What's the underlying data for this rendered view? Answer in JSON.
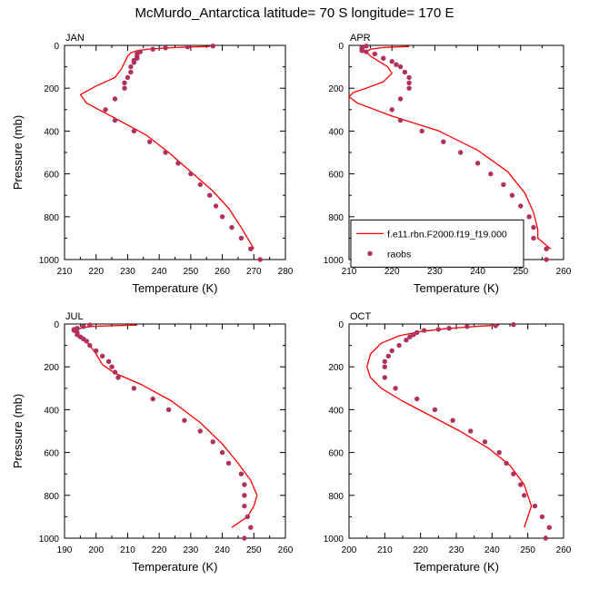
{
  "title": "McMurdo_Antarctica  latitude= 70 S longitude= 170 E",
  "chart_data": [
    {
      "type": "line",
      "panel_label": "JAN",
      "xlabel": "Temperature (K)",
      "ylabel": "Pressure (mb)",
      "xlim": [
        210,
        280
      ],
      "ylim": [
        1000,
        0
      ],
      "y_inverted": true,
      "xticks": [
        210,
        220,
        230,
        240,
        250,
        260,
        270,
        280
      ],
      "yticks": [
        0,
        200,
        400,
        600,
        800,
        1000
      ],
      "legend": null,
      "series": [
        {
          "name": "f.e11.rbn.F2000.f19_f19.000",
          "kind": "line",
          "color": "#ff0000",
          "points": [
            [
              256,
              5
            ],
            [
              245,
              10
            ],
            [
              237,
              17
            ],
            [
              233,
              25
            ],
            [
              231,
              35
            ],
            [
              230,
              50
            ],
            [
              229,
              80
            ],
            [
              228,
              110
            ],
            [
              226,
              150
            ],
            [
              220,
              190
            ],
            [
              215,
              230
            ],
            [
              217,
              270
            ],
            [
              226,
              340
            ],
            [
              236,
              420
            ],
            [
              243,
              500
            ],
            [
              250,
              590
            ],
            [
              257,
              680
            ],
            [
              262,
              760
            ],
            [
              266,
              850
            ],
            [
              270,
              950
            ]
          ]
        },
        {
          "name": "raobs",
          "kind": "markers",
          "color": "#b03060",
          "points": [
            [
              257,
              3
            ],
            [
              249,
              7
            ],
            [
              242,
              12
            ],
            [
              238,
              18
            ],
            [
              234,
              30
            ],
            [
              233,
              40
            ],
            [
              233,
              50
            ],
            [
              233,
              60
            ],
            [
              232,
              70
            ],
            [
              232,
              80
            ],
            [
              231,
              100
            ],
            [
              231,
              125
            ],
            [
              230,
              150
            ],
            [
              229,
              175
            ],
            [
              229,
              200
            ],
            [
              226,
              250
            ],
            [
              223,
              300
            ],
            [
              226,
              350
            ],
            [
              232,
              400
            ],
            [
              237,
              450
            ],
            [
              242,
              500
            ],
            [
              246,
              550
            ],
            [
              250,
              600
            ],
            [
              253,
              650
            ],
            [
              256,
              700
            ],
            [
              258,
              750
            ],
            [
              260,
              800
            ],
            [
              263,
              850
            ],
            [
              266,
              900
            ],
            [
              269,
              950
            ],
            [
              272,
              1000
            ]
          ]
        }
      ]
    },
    {
      "type": "line",
      "panel_label": "APR",
      "xlabel": "Temperature (K)",
      "ylabel": "",
      "xlim": [
        210,
        260
      ],
      "ylim": [
        1000,
        0
      ],
      "y_inverted": true,
      "xticks": [
        210,
        220,
        230,
        240,
        250,
        260
      ],
      "yticks": [
        0,
        200,
        400,
        600,
        800,
        1000
      ],
      "legend": {
        "position": "bottom-left",
        "entries": [
          "f.e11.rbn.F2000.f19_f19.000",
          "raobs"
        ]
      },
      "series": [
        {
          "name": "f.e11.rbn.F2000.f19_f19.000",
          "kind": "line",
          "color": "#ff0000",
          "points": [
            [
              224,
              5
            ],
            [
              218,
              10
            ],
            [
              215,
              18
            ],
            [
              214,
              30
            ],
            [
              215,
              50
            ],
            [
              217,
              75
            ],
            [
              219,
              100
            ],
            [
              220,
              130
            ],
            [
              218,
              170
            ],
            [
              214,
              200
            ],
            [
              211,
              220
            ],
            [
              210,
              240
            ],
            [
              212,
              270
            ],
            [
              220,
              330
            ],
            [
              231,
              400
            ],
            [
              240,
              490
            ],
            [
              247,
              590
            ],
            [
              251,
              690
            ],
            [
              253,
              780
            ],
            [
              254,
              860
            ],
            [
              254,
              900
            ],
            [
              257,
              950
            ]
          ]
        },
        {
          "name": "raobs",
          "kind": "markers",
          "color": "#b03060",
          "points": [
            [
              214,
              3
            ],
            [
              213,
              10
            ],
            [
              213,
              15
            ],
            [
              213,
              20
            ],
            [
              213,
              25
            ],
            [
              214,
              30
            ],
            [
              216,
              40
            ],
            [
              218,
              60
            ],
            [
              220,
              75
            ],
            [
              221,
              90
            ],
            [
              222,
              100
            ],
            [
              223,
              125
            ],
            [
              224,
              150
            ],
            [
              224,
              175
            ],
            [
              224,
              200
            ],
            [
              222,
              250
            ],
            [
              220,
              300
            ],
            [
              222,
              350
            ],
            [
              227,
              400
            ],
            [
              232,
              450
            ],
            [
              236,
              500
            ],
            [
              240,
              550
            ],
            [
              243,
              600
            ],
            [
              246,
              650
            ],
            [
              248,
              700
            ],
            [
              250,
              750
            ],
            [
              252,
              800
            ],
            [
              253,
              850
            ],
            [
              253,
              900
            ],
            [
              256,
              950
            ],
            [
              256,
              1000
            ]
          ]
        }
      ]
    },
    {
      "type": "line",
      "panel_label": "JUL",
      "xlabel": "Temperature (K)",
      "ylabel": "Pressure (mb)",
      "xlim": [
        190,
        260
      ],
      "ylim": [
        1000,
        0
      ],
      "y_inverted": true,
      "xticks": [
        190,
        200,
        210,
        220,
        230,
        240,
        250,
        260
      ],
      "yticks": [
        0,
        200,
        400,
        600,
        800,
        1000
      ],
      "legend": null,
      "series": [
        {
          "name": "f.e11.rbn.F2000.f19_f19.000",
          "kind": "line",
          "color": "#ff0000",
          "points": [
            [
              213,
              5
            ],
            [
              205,
              8
            ],
            [
              198,
              12
            ],
            [
              195,
              20
            ],
            [
              194,
              30
            ],
            [
              194,
              50
            ],
            [
              196,
              70
            ],
            [
              198,
              100
            ],
            [
              200,
              140
            ],
            [
              202,
              190
            ],
            [
              206,
              230
            ],
            [
              214,
              280
            ],
            [
              224,
              360
            ],
            [
              233,
              460
            ],
            [
              240,
              560
            ],
            [
              245,
              650
            ],
            [
              249,
              730
            ],
            [
              251,
              800
            ],
            [
              250,
              850
            ],
            [
              248,
              900
            ],
            [
              243,
              950
            ]
          ]
        },
        {
          "name": "raobs",
          "kind": "markers",
          "color": "#b03060",
          "points": [
            [
              198,
              5
            ],
            [
              196,
              12
            ],
            [
              194,
              20
            ],
            [
              193,
              25
            ],
            [
              193,
              30
            ],
            [
              194,
              40
            ],
            [
              194,
              50
            ],
            [
              195,
              60
            ],
            [
              196,
              70
            ],
            [
              197,
              80
            ],
            [
              198,
              100
            ],
            [
              200,
              125
            ],
            [
              202,
              150
            ],
            [
              204,
              175
            ],
            [
              205,
              200
            ],
            [
              206,
              225
            ],
            [
              207,
              250
            ],
            [
              212,
              300
            ],
            [
              218,
              350
            ],
            [
              223,
              400
            ],
            [
              228,
              450
            ],
            [
              233,
              500
            ],
            [
              237,
              550
            ],
            [
              240,
              600
            ],
            [
              242,
              650
            ],
            [
              246,
              700
            ],
            [
              247,
              750
            ],
            [
              247,
              800
            ],
            [
              247,
              850
            ],
            [
              248,
              900
            ],
            [
              249,
              950
            ],
            [
              247,
              1000
            ]
          ]
        }
      ]
    },
    {
      "type": "line",
      "panel_label": "OCT",
      "xlabel": "Temperature (K)",
      "ylabel": "",
      "xlim": [
        200,
        260
      ],
      "ylim": [
        1000,
        0
      ],
      "y_inverted": true,
      "xticks": [
        200,
        210,
        220,
        230,
        240,
        250,
        260
      ],
      "yticks": [
        0,
        200,
        400,
        600,
        800,
        1000
      ],
      "legend": null,
      "series": [
        {
          "name": "f.e11.rbn.F2000.f19_f19.000",
          "kind": "line",
          "color": "#ff0000",
          "points": [
            [
              242,
              5
            ],
            [
              235,
              12
            ],
            [
              227,
              22
            ],
            [
              220,
              35
            ],
            [
              214,
              55
            ],
            [
              209,
              90
            ],
            [
              206,
              140
            ],
            [
              205,
              200
            ],
            [
              206,
              250
            ],
            [
              209,
              300
            ],
            [
              215,
              360
            ],
            [
              223,
              430
            ],
            [
              231,
              500
            ],
            [
              239,
              580
            ],
            [
              245,
              660
            ],
            [
              249,
              750
            ],
            [
              251,
              850
            ],
            [
              250,
              900
            ],
            [
              249,
              950
            ]
          ]
        },
        {
          "name": "raobs",
          "kind": "markers",
          "color": "#b03060",
          "points": [
            [
              246,
              3
            ],
            [
              241,
              8
            ],
            [
              233,
              12
            ],
            [
              228,
              20
            ],
            [
              225,
              25
            ],
            [
              221,
              30
            ],
            [
              219,
              40
            ],
            [
              218,
              50
            ],
            [
              217,
              60
            ],
            [
              216,
              75
            ],
            [
              214,
              100
            ],
            [
              212,
              125
            ],
            [
              211,
              150
            ],
            [
              210,
              175
            ],
            [
              210,
              200
            ],
            [
              210,
              250
            ],
            [
              213,
              300
            ],
            [
              219,
              350
            ],
            [
              224,
              400
            ],
            [
              229,
              450
            ],
            [
              234,
              500
            ],
            [
              238,
              550
            ],
            [
              242,
              600
            ],
            [
              244,
              650
            ],
            [
              246,
              700
            ],
            [
              248,
              750
            ],
            [
              249,
              800
            ],
            [
              252,
              850
            ],
            [
              254,
              900
            ],
            [
              256,
              950
            ],
            [
              255,
              1000
            ]
          ]
        }
      ]
    }
  ]
}
